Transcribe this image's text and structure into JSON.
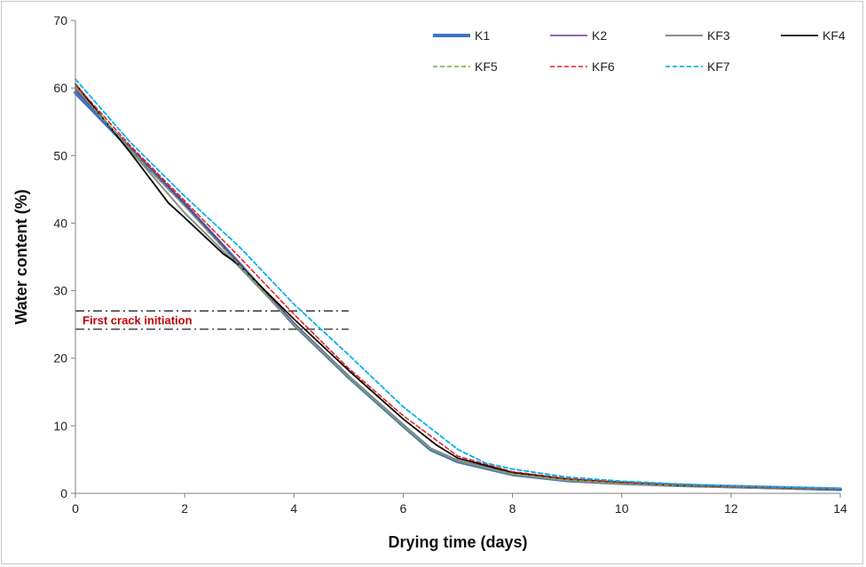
{
  "chart_data": {
    "type": "line",
    "xlabel": "Drying time (days)",
    "ylabel": "Water content (%)",
    "xlim": [
      0,
      14
    ],
    "ylim": [
      0,
      70
    ],
    "xticks": [
      0,
      2,
      4,
      6,
      8,
      10,
      12,
      14
    ],
    "yticks": [
      0,
      10,
      20,
      30,
      40,
      50,
      60,
      70
    ],
    "grid": false,
    "legend_position": "top-right",
    "annotation": {
      "text": "First crack initiation",
      "y_upper": 27.0,
      "y_lower": 24.3,
      "x_range": [
        0,
        5
      ]
    },
    "series": [
      {
        "name": "K1",
        "color": "#4472c4",
        "dash": "solid",
        "width": 4,
        "x": [
          0,
          1,
          2,
          3,
          4,
          5,
          6,
          6.5,
          7,
          8,
          9,
          10,
          11,
          12,
          13,
          14
        ],
        "y": [
          59.3,
          51.0,
          42.8,
          34.0,
          25.0,
          17.2,
          10.0,
          6.5,
          4.7,
          2.8,
          1.9,
          1.5,
          1.2,
          1.0,
          0.8,
          0.6
        ]
      },
      {
        "name": "K2",
        "color": "#7030a0",
        "dash": "solid",
        "width": 1.5,
        "x": [
          0,
          1,
          2,
          3,
          4,
          5,
          6,
          6.5,
          7,
          8,
          9,
          10,
          11,
          12,
          13,
          14
        ],
        "y": [
          59.8,
          51.2,
          42.9,
          34.0,
          25.2,
          17.4,
          10.2,
          6.7,
          4.9,
          2.9,
          2.0,
          1.5,
          1.2,
          1.0,
          0.8,
          0.6
        ]
      },
      {
        "name": "KF3",
        "color": "#8c8c8c",
        "dash": "solid",
        "width": 2,
        "x": [
          0,
          1,
          2,
          3,
          4,
          5,
          6,
          6.5,
          7,
          8,
          9,
          10,
          11,
          12,
          13,
          14
        ],
        "y": [
          60.2,
          50.8,
          41.5,
          33.5,
          25.0,
          17.3,
          10.1,
          6.6,
          4.8,
          2.8,
          1.9,
          1.4,
          1.1,
          0.9,
          0.7,
          0.6
        ]
      },
      {
        "name": "KF4",
        "color": "#000000",
        "dash": "solid",
        "width": 1.8,
        "x": [
          0,
          1,
          1.7,
          2,
          2.7,
          3,
          4,
          5,
          6,
          6.6,
          7,
          8,
          9,
          10,
          11,
          12,
          13,
          14
        ],
        "y": [
          60.6,
          50.5,
          43.0,
          40.8,
          35.5,
          33.8,
          25.8,
          18.2,
          11.0,
          7.2,
          5.2,
          3.1,
          2.1,
          1.6,
          1.2,
          1.0,
          0.8,
          0.6
        ]
      },
      {
        "name": "KF5",
        "color": "#70ad47",
        "dash": "dashed",
        "width": 1.5,
        "x": [
          0,
          1,
          2,
          3,
          4,
          5,
          6,
          6.5,
          7,
          8,
          9,
          10,
          11,
          12,
          13,
          14
        ],
        "y": [
          60.0,
          51.0,
          42.5,
          33.8,
          25.0,
          17.2,
          10.0,
          6.6,
          4.8,
          2.9,
          2.0,
          1.5,
          1.2,
          1.0,
          0.8,
          0.6
        ]
      },
      {
        "name": "KF6",
        "color": "#e31a1c",
        "dash": "dashed",
        "width": 1.5,
        "x": [
          0,
          1,
          2,
          3,
          4,
          5,
          6,
          7,
          8,
          9,
          10,
          11,
          12,
          13,
          14
        ],
        "y": [
          60.5,
          51.5,
          43.3,
          35.0,
          26.5,
          18.5,
          11.5,
          5.5,
          3.2,
          2.2,
          1.6,
          1.3,
          1.0,
          0.8,
          0.6
        ]
      },
      {
        "name": "KF7",
        "color": "#00b0f0",
        "dash": "dashed",
        "width": 1.8,
        "x": [
          0,
          1,
          2,
          3,
          4,
          5,
          6,
          7,
          7.5,
          8,
          9,
          10,
          11,
          12,
          13,
          14
        ],
        "y": [
          61.3,
          52.0,
          44.0,
          36.5,
          28.0,
          20.5,
          12.8,
          6.5,
          4.5,
          3.6,
          2.4,
          1.8,
          1.4,
          1.1,
          0.9,
          0.7
        ]
      }
    ]
  }
}
